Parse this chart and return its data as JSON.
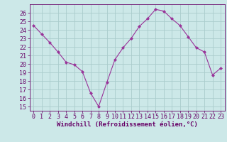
{
  "x": [
    0,
    1,
    2,
    3,
    4,
    5,
    6,
    7,
    8,
    9,
    10,
    11,
    12,
    13,
    14,
    15,
    16,
    17,
    18,
    19,
    20,
    21,
    22,
    23
  ],
  "y": [
    24.5,
    23.5,
    22.5,
    21.4,
    20.2,
    19.9,
    19.1,
    16.6,
    15.0,
    17.8,
    20.5,
    21.9,
    23.0,
    24.4,
    25.3,
    26.4,
    26.2,
    25.3,
    24.5,
    23.2,
    21.9,
    21.4,
    18.7,
    19.5
  ],
  "line_color": "#993399",
  "marker": "D",
  "marker_size": 2.0,
  "bg_color": "#cce8e8",
  "grid_color": "#aacccc",
  "xlabel": "Windchill (Refroidissement éolien,°C)",
  "ylabel": "",
  "ylim": [
    14.5,
    27.0
  ],
  "xlim": [
    -0.5,
    23.5
  ],
  "yticks": [
    15,
    16,
    17,
    18,
    19,
    20,
    21,
    22,
    23,
    24,
    25,
    26
  ],
  "xticks": [
    0,
    1,
    2,
    3,
    4,
    5,
    6,
    7,
    8,
    9,
    10,
    11,
    12,
    13,
    14,
    15,
    16,
    17,
    18,
    19,
    20,
    21,
    22,
    23
  ],
  "title_color": "#660066",
  "axis_color": "#660066",
  "tick_color": "#660066",
  "label_fontsize": 6.5,
  "tick_fontsize": 6.0
}
